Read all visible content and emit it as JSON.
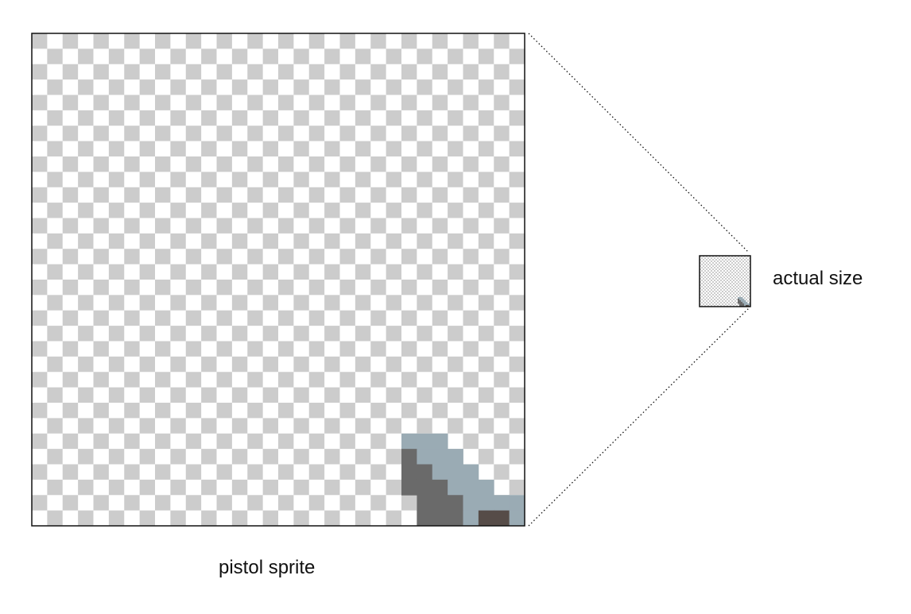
{
  "caption_enlarged": "pistol sprite",
  "caption_actual": "actual size",
  "sprite": {
    "grid_size": 32,
    "colors": {
      "checker_light": "#ffffff",
      "checker_dark": "#cccccc",
      "frame": "#111111",
      "connector": "#111111",
      "steel": "#9aabb4",
      "shadow": "#6a6a6a",
      "grip": "#564c48"
    },
    "pixels": [
      {
        "x": 24,
        "y": 26,
        "c": "steel"
      },
      {
        "x": 25,
        "y": 26,
        "c": "steel"
      },
      {
        "x": 26,
        "y": 26,
        "c": "steel"
      },
      {
        "x": 24,
        "y": 27,
        "c": "shadow"
      },
      {
        "x": 25,
        "y": 27,
        "c": "steel"
      },
      {
        "x": 26,
        "y": 27,
        "c": "steel"
      },
      {
        "x": 27,
        "y": 27,
        "c": "steel"
      },
      {
        "x": 24,
        "y": 28,
        "c": "shadow"
      },
      {
        "x": 25,
        "y": 28,
        "c": "shadow"
      },
      {
        "x": 26,
        "y": 28,
        "c": "steel"
      },
      {
        "x": 27,
        "y": 28,
        "c": "steel"
      },
      {
        "x": 28,
        "y": 28,
        "c": "steel"
      },
      {
        "x": 24,
        "y": 29,
        "c": "shadow"
      },
      {
        "x": 25,
        "y": 29,
        "c": "shadow"
      },
      {
        "x": 26,
        "y": 29,
        "c": "shadow"
      },
      {
        "x": 27,
        "y": 29,
        "c": "steel"
      },
      {
        "x": 28,
        "y": 29,
        "c": "steel"
      },
      {
        "x": 29,
        "y": 29,
        "c": "steel"
      },
      {
        "x": 25,
        "y": 30,
        "c": "shadow"
      },
      {
        "x": 26,
        "y": 30,
        "c": "shadow"
      },
      {
        "x": 27,
        "y": 30,
        "c": "shadow"
      },
      {
        "x": 28,
        "y": 30,
        "c": "steel"
      },
      {
        "x": 29,
        "y": 30,
        "c": "steel"
      },
      {
        "x": 30,
        "y": 30,
        "c": "steel"
      },
      {
        "x": 31,
        "y": 30,
        "c": "steel"
      },
      {
        "x": 25,
        "y": 31,
        "c": "shadow"
      },
      {
        "x": 26,
        "y": 31,
        "c": "shadow"
      },
      {
        "x": 27,
        "y": 31,
        "c": "shadow"
      },
      {
        "x": 28,
        "y": 31,
        "c": "steel"
      },
      {
        "x": 29,
        "y": 31,
        "c": "grip"
      },
      {
        "x": 30,
        "y": 31,
        "c": "grip"
      },
      {
        "x": 31,
        "y": 31,
        "c": "steel"
      }
    ]
  }
}
